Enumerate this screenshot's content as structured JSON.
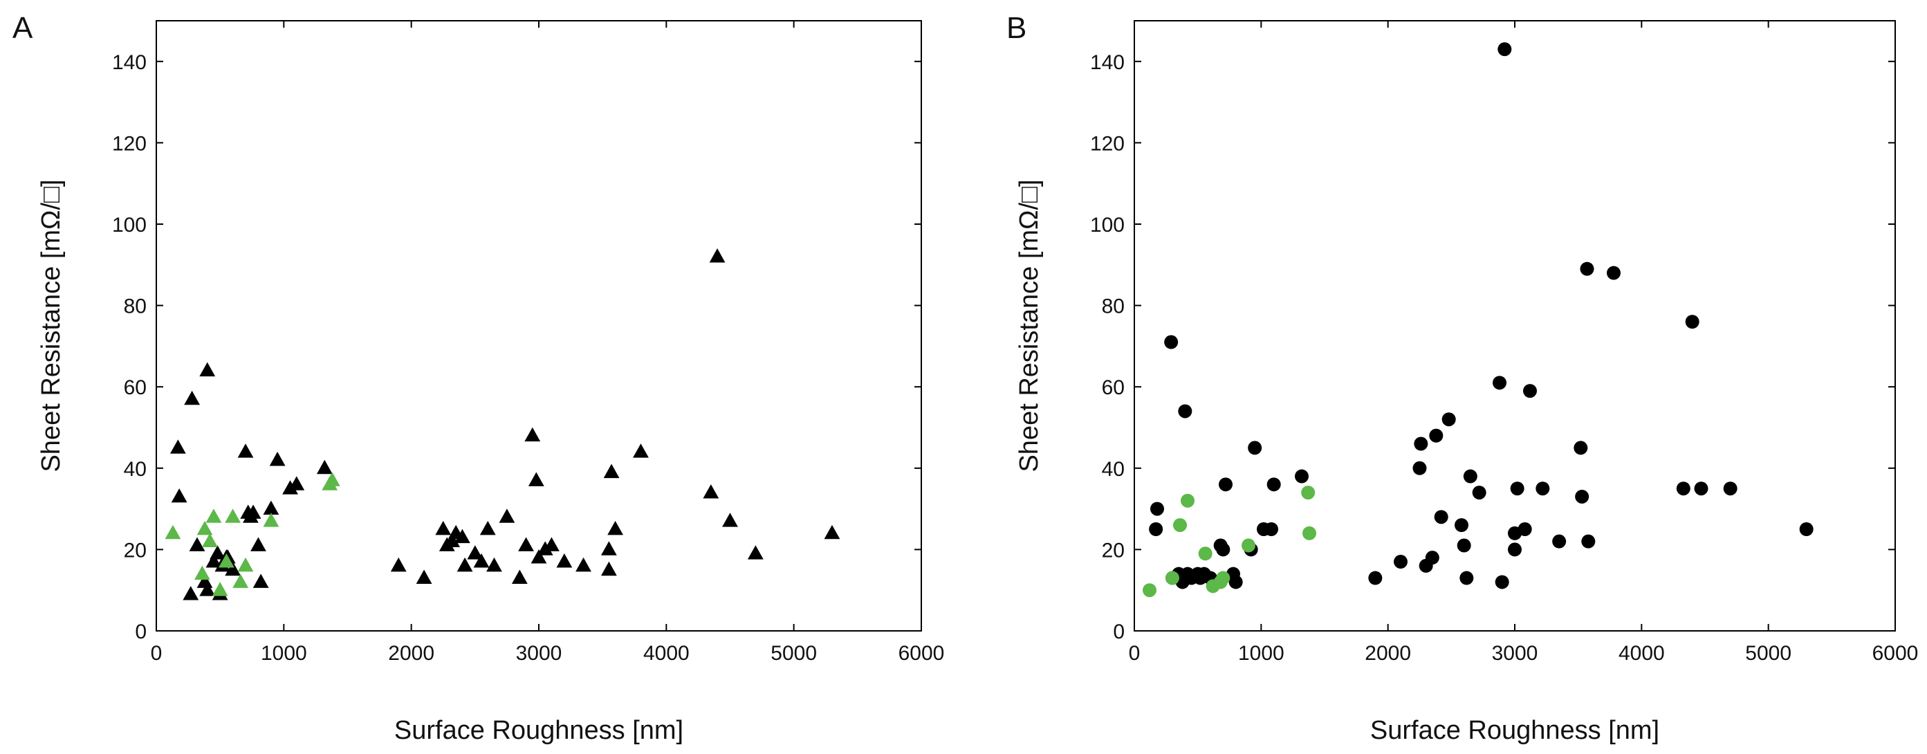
{
  "chart_data": [
    {
      "panel_label": "A",
      "type": "scatter",
      "marker": "triangle",
      "xlabel": "Surface Roughness [nm]",
      "ylabel": "Sheet Resistance [mΩ/□]",
      "xlim": [
        0,
        6000
      ],
      "ylim": [
        0,
        150
      ],
      "xticks": [
        0,
        1000,
        2000,
        3000,
        4000,
        5000,
        6000
      ],
      "yticks": [
        0,
        20,
        40,
        60,
        80,
        100,
        120,
        140
      ],
      "grid": false,
      "series": [
        {
          "name": "black",
          "color": "#000000",
          "points": [
            [
              170,
              45
            ],
            [
              180,
              33
            ],
            [
              280,
              57
            ],
            [
              400,
              64
            ],
            [
              270,
              9
            ],
            [
              320,
              21
            ],
            [
              380,
              12
            ],
            [
              400,
              10
            ],
            [
              450,
              17
            ],
            [
              480,
              19
            ],
            [
              500,
              9
            ],
            [
              520,
              16
            ],
            [
              550,
              18
            ],
            [
              560,
              18
            ],
            [
              600,
              15
            ],
            [
              700,
              44
            ],
            [
              720,
              29
            ],
            [
              740,
              28
            ],
            [
              760,
              29
            ],
            [
              800,
              21
            ],
            [
              820,
              12
            ],
            [
              900,
              30
            ],
            [
              950,
              42
            ],
            [
              1050,
              35
            ],
            [
              1100,
              36
            ],
            [
              1320,
              40
            ],
            [
              1900,
              16
            ],
            [
              2100,
              13
            ],
            [
              2250,
              25
            ],
            [
              2280,
              21
            ],
            [
              2320,
              22
            ],
            [
              2350,
              24
            ],
            [
              2400,
              23
            ],
            [
              2420,
              16
            ],
            [
              2500,
              19
            ],
            [
              2550,
              17
            ],
            [
              2600,
              25
            ],
            [
              2650,
              16
            ],
            [
              2750,
              28
            ],
            [
              2850,
              13
            ],
            [
              2900,
              21
            ],
            [
              2950,
              48
            ],
            [
              2980,
              37
            ],
            [
              3000,
              18
            ],
            [
              3050,
              20
            ],
            [
              3100,
              21
            ],
            [
              3200,
              17
            ],
            [
              3350,
              16
            ],
            [
              3550,
              20
            ],
            [
              3550,
              15
            ],
            [
              3600,
              25
            ],
            [
              3570,
              39
            ],
            [
              3800,
              44
            ],
            [
              4350,
              34
            ],
            [
              4400,
              92
            ],
            [
              4500,
              27
            ],
            [
              4700,
              19
            ],
            [
              5300,
              24
            ]
          ]
        },
        {
          "name": "green",
          "color": "#5cb848",
          "points": [
            [
              130,
              24
            ],
            [
              360,
              14
            ],
            [
              380,
              25
            ],
            [
              420,
              22
            ],
            [
              450,
              28
            ],
            [
              500,
              10
            ],
            [
              550,
              17
            ],
            [
              600,
              28
            ],
            [
              660,
              12
            ],
            [
              700,
              16
            ],
            [
              900,
              27
            ],
            [
              1380,
              37
            ],
            [
              1360,
              36
            ]
          ]
        }
      ]
    },
    {
      "panel_label": "B",
      "type": "scatter",
      "marker": "circle",
      "xlabel": "Surface Roughness [nm]",
      "ylabel": "Sheet Resistance [mΩ/□]",
      "xlim": [
        0,
        6000
      ],
      "ylim": [
        0,
        150
      ],
      "xticks": [
        0,
        1000,
        2000,
        3000,
        4000,
        5000,
        6000
      ],
      "yticks": [
        0,
        20,
        40,
        60,
        80,
        100,
        120,
        140
      ],
      "grid": false,
      "series": [
        {
          "name": "black",
          "color": "#000000",
          "points": [
            [
              170,
              25
            ],
            [
              180,
              30
            ],
            [
              290,
              71
            ],
            [
              300,
              13
            ],
            [
              350,
              14
            ],
            [
              400,
              54
            ],
            [
              380,
              12
            ],
            [
              420,
              14
            ],
            [
              450,
              13
            ],
            [
              500,
              14
            ],
            [
              520,
              13
            ],
            [
              550,
              14
            ],
            [
              600,
              13
            ],
            [
              680,
              21
            ],
            [
              700,
              20
            ],
            [
              720,
              36
            ],
            [
              780,
              14
            ],
            [
              800,
              12
            ],
            [
              920,
              20
            ],
            [
              950,
              45
            ],
            [
              1020,
              25
            ],
            [
              1080,
              25
            ],
            [
              1100,
              36
            ],
            [
              1320,
              38
            ],
            [
              1900,
              13
            ],
            [
              2100,
              17
            ],
            [
              2250,
              40
            ],
            [
              2260,
              46
            ],
            [
              2300,
              16
            ],
            [
              2350,
              18
            ],
            [
              2380,
              48
            ],
            [
              2420,
              28
            ],
            [
              2480,
              52
            ],
            [
              2580,
              26
            ],
            [
              2600,
              21
            ],
            [
              2620,
              13
            ],
            [
              2650,
              38
            ],
            [
              2720,
              34
            ],
            [
              2900,
              12
            ],
            [
              2880,
              61
            ],
            [
              2920,
              143
            ],
            [
              3000,
              20
            ],
            [
              3000,
              24
            ],
            [
              3020,
              35
            ],
            [
              3080,
              25
            ],
            [
              3120,
              59
            ],
            [
              3220,
              35
            ],
            [
              3350,
              22
            ],
            [
              3520,
              45
            ],
            [
              3530,
              33
            ],
            [
              3570,
              89
            ],
            [
              3580,
              22
            ],
            [
              3780,
              88
            ],
            [
              4330,
              35
            ],
            [
              4400,
              76
            ],
            [
              4470,
              35
            ],
            [
              4700,
              35
            ],
            [
              5300,
              25
            ]
          ]
        },
        {
          "name": "green",
          "color": "#5cb848",
          "points": [
            [
              120,
              10
            ],
            [
              300,
              13
            ],
            [
              360,
              26
            ],
            [
              420,
              32
            ],
            [
              560,
              19
            ],
            [
              620,
              11
            ],
            [
              680,
              12
            ],
            [
              700,
              13
            ],
            [
              900,
              21
            ],
            [
              1370,
              34
            ],
            [
              1380,
              24
            ]
          ]
        }
      ]
    }
  ]
}
